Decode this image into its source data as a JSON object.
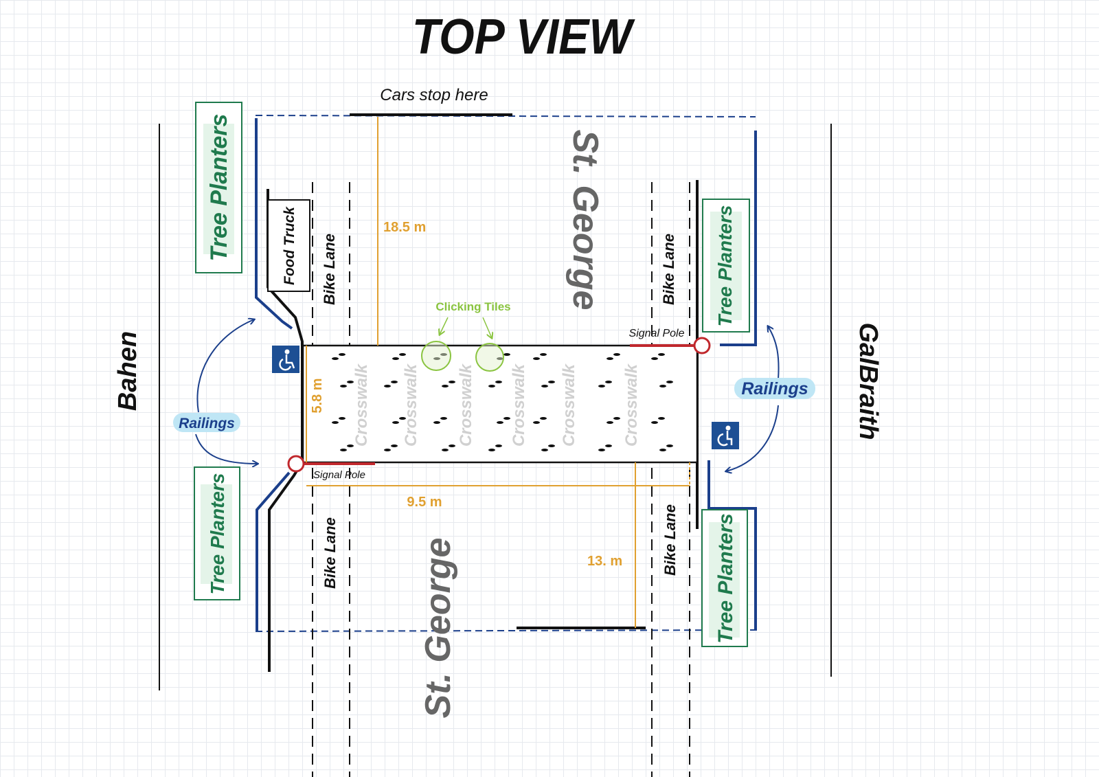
{
  "title": "TOP VIEW",
  "buildings": {
    "left": "Bahen",
    "right": "GalBraith"
  },
  "street": {
    "top_label": "St. George",
    "bottom_label": "St. George"
  },
  "stop_line_label": "Cars stop here",
  "planters": {
    "top_left": "Tree Planters",
    "bottom_left": "Tree Planters",
    "top_right": "Tree Planters",
    "bottom_right": "Tree Planters"
  },
  "food_truck": "Food Truck",
  "bike_lanes": {
    "top_left": "Bike Lane",
    "top_right": "Bike Lane",
    "bottom_left": "Bike Lane",
    "bottom_right": "Bike Lane"
  },
  "crosswalk": {
    "labels": [
      "Crosswalk",
      "Crosswalk",
      "Crosswalk",
      "Crosswalk",
      "Crosswalk",
      "Crosswalk"
    ],
    "clicking_tiles_label": "Clicking Tiles"
  },
  "signal_poles": {
    "top_right": "Signal Pole",
    "bottom_left": "Signal Pole"
  },
  "railings": {
    "left": "Railings",
    "right": "Railings"
  },
  "dimensions": {
    "north_distance": "18.5 m",
    "crosswalk_width": "5.8 m",
    "road_width": "9.5 m",
    "south_distance": "13. m"
  },
  "colors": {
    "planter_green": "#1f7a4d",
    "railing_blue": "#1b3f8b",
    "dimension_orange": "#e0a030",
    "signal_red": "#c0282d",
    "tiles_green": "#8ac440",
    "railing_badge": "#bfe6f5",
    "accessible_blue": "#1d4f94"
  },
  "icons": [
    "wheelchair-icon",
    "wheelchair-icon"
  ]
}
